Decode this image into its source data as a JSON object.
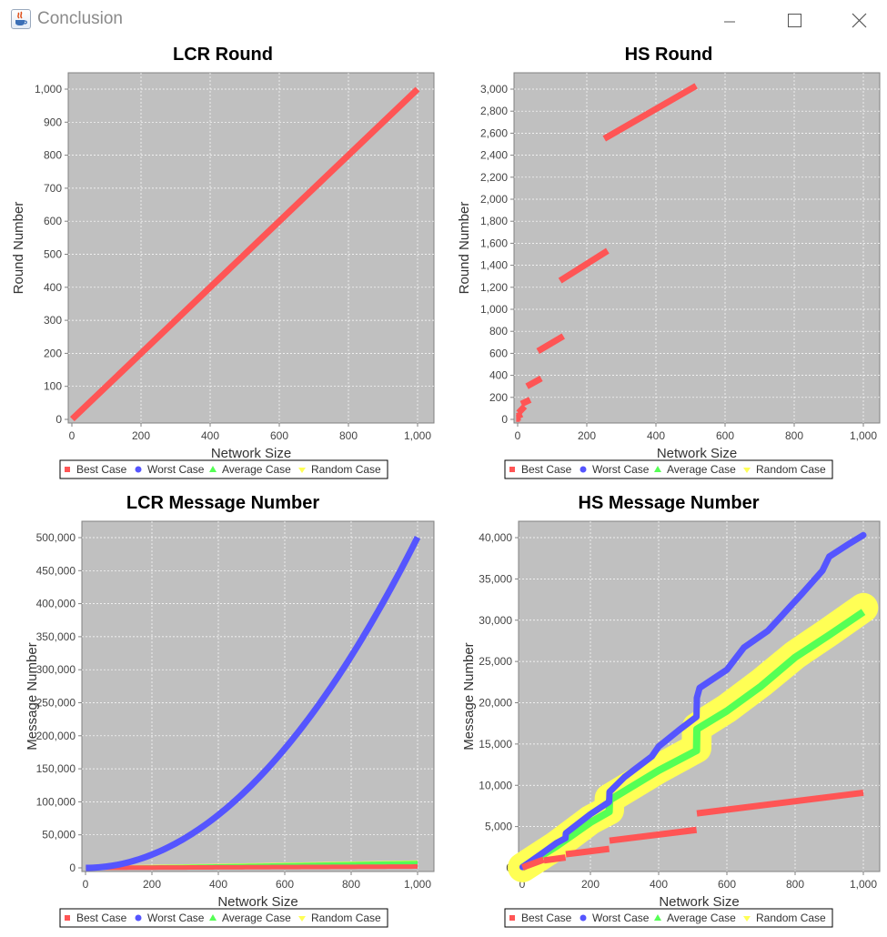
{
  "window": {
    "title": "Conclusion",
    "icon": "java-cup-icon",
    "controls": [
      "minimize-icon",
      "maximize-icon",
      "close-icon"
    ]
  },
  "colors": {
    "best": "#ff5555",
    "worst": "#5555ff",
    "average": "#55ff55",
    "random": "#ffff55",
    "plot_bg": "#c0c0c0",
    "grid": "#ffffff"
  },
  "chart_data": [
    {
      "id": "lcr-round",
      "type": "scatter",
      "title": "LCR Round",
      "xlabel": "Network Size",
      "ylabel": "Round Number",
      "xlim": [
        0,
        1000
      ],
      "ylim": [
        0,
        1000
      ],
      "x_ticks": [
        0,
        200,
        400,
        600,
        800,
        1000
      ],
      "x_tick_labels": [
        "0",
        "200",
        "400",
        "600",
        "800",
        "1,000"
      ],
      "y_ticks": [
        0,
        100,
        200,
        300,
        400,
        500,
        600,
        700,
        800,
        900,
        1000
      ],
      "y_tick_labels": [
        "0",
        "100",
        "200",
        "300",
        "400",
        "500",
        "600",
        "700",
        "800",
        "900",
        "1,000"
      ],
      "grid": true,
      "legend_position": "bottom",
      "legend": [
        "Best Case",
        "Worst Case",
        "Average Case",
        "Random Case"
      ],
      "series": [
        {
          "name": "Best Case",
          "x": [
            1,
            1000
          ],
          "y": [
            1,
            1000
          ]
        },
        {
          "name": "Worst Case",
          "x": [
            1,
            1000
          ],
          "y": [
            1,
            1000
          ]
        },
        {
          "name": "Average Case",
          "x": [
            1,
            1000
          ],
          "y": [
            1,
            1000
          ]
        },
        {
          "name": "Random Case",
          "x": [
            1,
            1000
          ],
          "y": [
            1,
            1000
          ]
        }
      ]
    },
    {
      "id": "hs-round",
      "type": "scatter",
      "title": "HS Round",
      "xlabel": "Network Size",
      "ylabel": "Round Number",
      "xlim": [
        0,
        1000
      ],
      "ylim": [
        0,
        3000
      ],
      "x_ticks": [
        0,
        200,
        400,
        600,
        800,
        1000
      ],
      "x_tick_labels": [
        "0",
        "200",
        "400",
        "600",
        "800",
        "1,000"
      ],
      "y_ticks": [
        0,
        200,
        400,
        600,
        800,
        1000,
        1200,
        1400,
        1600,
        1800,
        2000,
        2200,
        2400,
        2600,
        2800,
        3000
      ],
      "y_tick_labels": [
        "0",
        "200",
        "400",
        "600",
        "800",
        "1,000",
        "1,200",
        "1,400",
        "1,600",
        "1,800",
        "2,000",
        "2,200",
        "2,400",
        "2,600",
        "2,800",
        "3,000"
      ],
      "grid": true,
      "legend_position": "bottom",
      "legend": [
        "Best Case",
        "Worst Case",
        "Average Case",
        "Random Case"
      ],
      "segments": [
        {
          "x": [
            1,
            1
          ],
          "y": [
            6,
            6
          ]
        },
        {
          "x": [
            2,
            3
          ],
          "y": [
            12,
            18
          ]
        },
        {
          "x": [
            4,
            7
          ],
          "y": [
            28,
            48
          ]
        },
        {
          "x": [
            8,
            15
          ],
          "y": [
            60,
            118
          ]
        },
        {
          "x": [
            16,
            31
          ],
          "y": [
            140,
            178
          ]
        },
        {
          "x": [
            32,
            63
          ],
          "y": [
            300,
            372
          ]
        },
        {
          "x": [
            64,
            127
          ],
          "y": [
            620,
            756
          ]
        },
        {
          "x": [
            128,
            255
          ],
          "y": [
            1260,
            1532
          ]
        },
        {
          "x": [
            256,
            511
          ],
          "y": [
            2550,
            3030
          ]
        }
      ]
    },
    {
      "id": "lcr-message",
      "type": "scatter",
      "title": "LCR Message Number",
      "xlabel": "Network Size",
      "ylabel": "Message Number",
      "xlim": [
        0,
        1000
      ],
      "ylim": [
        0,
        500000
      ],
      "x_ticks": [
        0,
        200,
        400,
        600,
        800,
        1000
      ],
      "x_tick_labels": [
        "0",
        "200",
        "400",
        "600",
        "800",
        "1,000"
      ],
      "y_ticks": [
        0,
        50000,
        100000,
        150000,
        200000,
        250000,
        300000,
        350000,
        400000,
        450000,
        500000
      ],
      "y_tick_labels": [
        "0",
        "50,000",
        "100,000",
        "150,000",
        "200,000",
        "250,000",
        "300,000",
        "350,000",
        "400,000",
        "450,000",
        "500,000"
      ],
      "grid": true,
      "legend_position": "bottom",
      "legend": [
        "Best Case",
        "Worst Case",
        "Average Case",
        "Random Case"
      ],
      "series": [
        {
          "name": "Best Case",
          "model": "y = 2n - 1",
          "x_range": [
            1,
            1000
          ]
        },
        {
          "name": "Worst Case",
          "model": "y = n(n+1)/2",
          "x_range": [
            1,
            1000
          ]
        },
        {
          "name": "Average Case",
          "model": "y ≈ n·ln(n)+n",
          "x_range": [
            1,
            1000
          ]
        },
        {
          "name": "Random Case",
          "model": "y ≈ n·ln(n)+n",
          "x_range": [
            1,
            1000
          ]
        }
      ]
    },
    {
      "id": "hs-message",
      "type": "scatter",
      "title": "HS Message Number",
      "xlabel": "Network Size",
      "ylabel": "Message Number",
      "xlim": [
        0,
        1000
      ],
      "ylim": [
        0,
        40000
      ],
      "x_ticks": [
        0,
        200,
        400,
        600,
        800,
        1000
      ],
      "x_tick_labels": [
        "0",
        "200",
        "400",
        "600",
        "800",
        "1,000"
      ],
      "y_ticks": [
        0,
        5000,
        10000,
        15000,
        20000,
        25000,
        30000,
        35000,
        40000
      ],
      "y_tick_labels": [
        "0",
        "5,000",
        "10,000",
        "15,000",
        "20,000",
        "25,000",
        "30,000",
        "35,000",
        "40,000"
      ],
      "grid": true,
      "legend_position": "bottom",
      "legend": [
        "Best Case",
        "Worst Case",
        "Average Case",
        "Random Case"
      ],
      "series": [
        {
          "name": "Best Case",
          "segments": [
            {
              "x": [
                1,
                63
              ],
              "y": [
                50,
                1000
              ]
            },
            {
              "x": [
                64,
                127
              ],
              "y": [
                900,
                1250
              ]
            },
            {
              "x": [
                128,
                255
              ],
              "y": [
                1650,
                2300
              ]
            },
            {
              "x": [
                256,
                511
              ],
              "y": [
                3300,
                4600
              ]
            },
            {
              "x": [
                512,
                1000
              ],
              "y": [
                6600,
                9100
              ]
            }
          ]
        },
        {
          "name": "Worst Case",
          "points": [
            [
              1,
              100
            ],
            [
              60,
              1800
            ],
            [
              100,
              3000
            ],
            [
              127,
              3600
            ],
            [
              128,
              4200
            ],
            [
              200,
              6500
            ],
            [
              255,
              8000
            ],
            [
              256,
              9200
            ],
            [
              300,
              11000
            ],
            [
              380,
              13500
            ],
            [
              400,
              14700
            ],
            [
              460,
              16700
            ],
            [
              511,
              18300
            ],
            [
              512,
              20600
            ],
            [
              520,
              21800
            ],
            [
              600,
              24000
            ],
            [
              650,
              26700
            ],
            [
              720,
              28700
            ],
            [
              760,
              30500
            ],
            [
              780,
              31400
            ],
            [
              820,
              33200
            ],
            [
              880,
              36000
            ],
            [
              900,
              37700
            ],
            [
              960,
              39300
            ],
            [
              1000,
              40300
            ]
          ]
        },
        {
          "name": "Average Case",
          "points": [
            [
              1,
              50
            ],
            [
              100,
              2600
            ],
            [
              200,
              5500
            ],
            [
              255,
              6800
            ],
            [
              256,
              8200
            ],
            [
              400,
              11800
            ],
            [
              511,
              14200
            ],
            [
              512,
              16800
            ],
            [
              600,
              19000
            ],
            [
              700,
              22000
            ],
            [
              800,
              25500
            ],
            [
              900,
              28200
            ],
            [
              1000,
              31000
            ]
          ]
        },
        {
          "name": "Random Case",
          "points": [
            [
              1,
              50
            ],
            [
              100,
              2700
            ],
            [
              200,
              5800
            ],
            [
              255,
              7000
            ],
            [
              256,
              8400
            ],
            [
              400,
              12000
            ],
            [
              511,
              14500
            ],
            [
              512,
              17000
            ],
            [
              600,
              19300
            ],
            [
              700,
              22400
            ],
            [
              800,
              25800
            ],
            [
              900,
              28600
            ],
            [
              1000,
              31500
            ]
          ],
          "spread": 1800
        }
      ]
    }
  ]
}
